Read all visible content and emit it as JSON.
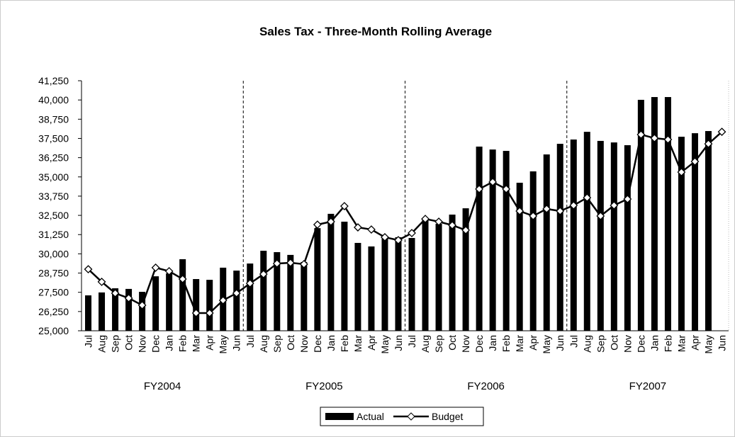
{
  "chart_data": {
    "type": "bar_line",
    "title": "Sales Tax - Three-Month Rolling Average",
    "categories": [
      "Jul",
      "Aug",
      "Sep",
      "Oct",
      "Nov",
      "Dec",
      "Jan",
      "Feb",
      "Mar",
      "Apr",
      "May",
      "Jun",
      "Jul",
      "Aug",
      "Sep",
      "Oct",
      "Nov",
      "Dec",
      "Jan",
      "Feb",
      "Mar",
      "Apr",
      "May",
      "Jun",
      "Jul",
      "Aug",
      "Sep",
      "Oct",
      "Nov",
      "Dec",
      "Jan",
      "Feb",
      "Mar",
      "Apr",
      "May",
      "Jun",
      "Jul",
      "Aug",
      "Sep",
      "Oct",
      "Nov",
      "Dec",
      "Jan",
      "Feb",
      "Mar",
      "Apr",
      "May",
      "Jun"
    ],
    "groups": [
      "FY2004",
      "FY2005",
      "FY2006",
      "FY2007"
    ],
    "series": [
      {
        "name": "Actual",
        "kind": "bar",
        "color": "#000000",
        "values": [
          27300,
          27490,
          27760,
          27720,
          27530,
          28540,
          28730,
          29650,
          28360,
          28310,
          29100,
          28910,
          29370,
          30200,
          30110,
          29930,
          29470,
          31670,
          32600,
          32090,
          30710,
          30480,
          31030,
          31080,
          31030,
          32230,
          31950,
          32550,
          32960,
          36970,
          36780,
          36690,
          34620,
          35360,
          36460,
          37150,
          37430,
          37930,
          37340,
          37240,
          37060,
          40010,
          40190,
          40190,
          37610,
          37840,
          37980,
          null
        ]
      },
      {
        "name": "Budget",
        "kind": "line",
        "color": "#000000",
        "values": [
          29000,
          28180,
          27440,
          27120,
          26660,
          29100,
          28870,
          28360,
          26150,
          26150,
          26980,
          27440,
          28080,
          28680,
          29370,
          29420,
          29330,
          31900,
          32090,
          33100,
          31720,
          31580,
          31080,
          30890,
          31350,
          32270,
          32090,
          31860,
          31540,
          34210,
          34670,
          34210,
          32780,
          32460,
          32920,
          32780,
          33150,
          33650,
          32460,
          33150,
          33560,
          37750,
          37520,
          37430,
          35310,
          36000,
          37150,
          37930
        ]
      }
    ],
    "ylim": [
      25000,
      41250
    ],
    "yticks": [
      {
        "value": 25000,
        "label": "25,000"
      },
      {
        "value": 26250,
        "label": "26,250"
      },
      {
        "value": 27500,
        "label": "27,500"
      },
      {
        "value": 28750,
        "label": "28,750"
      },
      {
        "value": 30000,
        "label": "30,000"
      },
      {
        "value": 31250,
        "label": "31,250"
      },
      {
        "value": 32500,
        "label": "32,500"
      },
      {
        "value": 33750,
        "label": "33,750"
      },
      {
        "value": 35000,
        "label": "35,000"
      },
      {
        "value": 36250,
        "label": "36,250"
      },
      {
        "value": 37500,
        "label": "37,500"
      },
      {
        "value": 38750,
        "label": "38,750"
      },
      {
        "value": 40000,
        "label": "40,000"
      },
      {
        "value": 41250,
        "label": "41,250"
      }
    ]
  }
}
